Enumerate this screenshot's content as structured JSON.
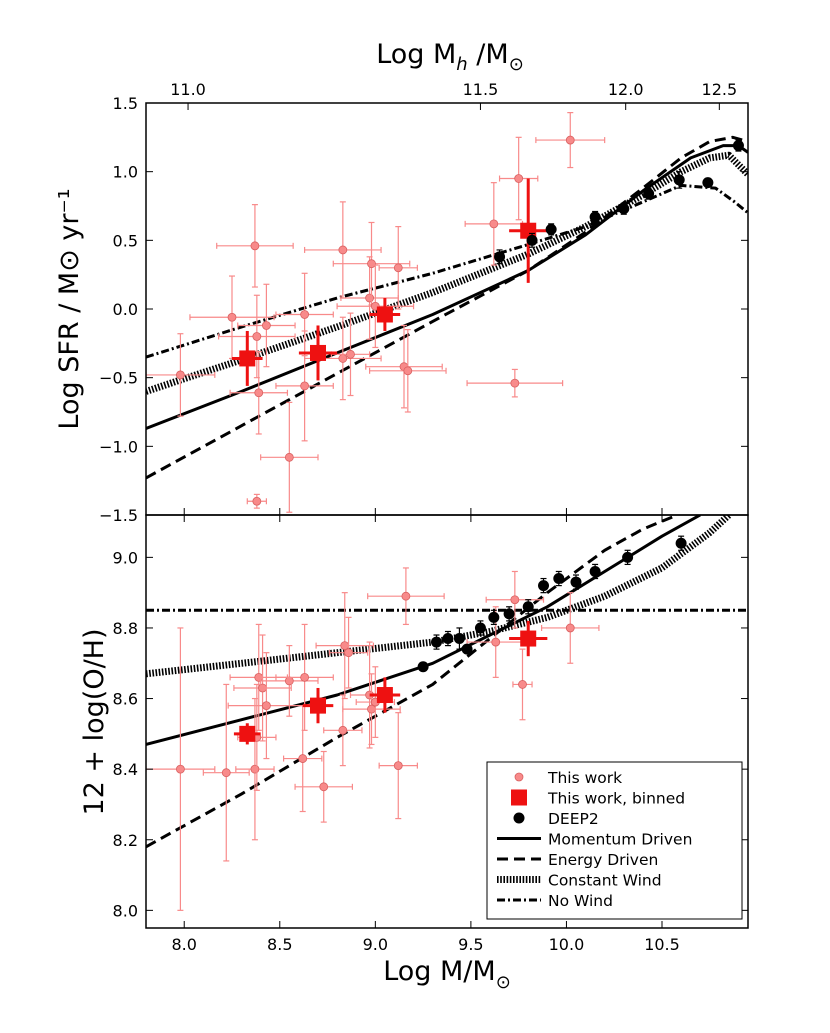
{
  "chart_data": [
    {
      "type": "scatter",
      "panel": "top",
      "ylabel": "Log SFR / M⊙ yr⁻¹",
      "xlim": [
        7.8,
        10.95
      ],
      "ylim": [
        -1.5,
        1.5
      ],
      "yticks": [
        -1.5,
        -1.0,
        -0.5,
        0.0,
        0.5,
        1.0,
        1.5
      ],
      "ytick_labels": [
        "−1.5",
        "−1.0",
        "−0.5",
        "0.0",
        "0.5",
        "1.0",
        "1.5"
      ],
      "secondary_x": {
        "label_main": "Log M",
        "label_sub": "h",
        "label_tail": "/M",
        "label_sun": "⊙",
        "ticks": [
          {
            "label": "11.0",
            "at_stellar_mass": 8.02
          },
          {
            "label": "11.5",
            "at_stellar_mass": 9.55
          },
          {
            "label": "12.0",
            "at_stellar_mass": 10.31
          },
          {
            "label": "12.5",
            "at_stellar_mass": 10.8
          }
        ]
      },
      "series": [
        {
          "name": "This work",
          "kind": "points",
          "color": "#f88a8a",
          "points": [
            {
              "x": 7.98,
              "y": -0.48,
              "xerr": 0.18,
              "yerr": 0.3
            },
            {
              "x": 8.25,
              "y": -0.06,
              "xerr": 0.22,
              "yerr": 0.3
            },
            {
              "x": 8.37,
              "y": 0.46,
              "xerr": 0.2,
              "yerr": 0.3
            },
            {
              "x": 8.38,
              "y": -0.2,
              "xerr": 0.2,
              "yerr": 0.3
            },
            {
              "x": 8.38,
              "y": -1.4,
              "xerr": 0.05,
              "yerr": 0.05
            },
            {
              "x": 8.39,
              "y": -0.61,
              "xerr": 0.15,
              "yerr": 0.3
            },
            {
              "x": 8.43,
              "y": -0.12,
              "xerr": 0.15,
              "yerr": 0.3
            },
            {
              "x": 8.55,
              "y": -1.08,
              "xerr": 0.15,
              "yerr": 0.4
            },
            {
              "x": 8.63,
              "y": -0.04,
              "xerr": 0.15,
              "yerr": 0.3
            },
            {
              "x": 8.63,
              "y": -0.56,
              "xerr": 0.15,
              "yerr": 0.4
            },
            {
              "x": 8.83,
              "y": 0.43,
              "xerr": 0.2,
              "yerr": 0.35
            },
            {
              "x": 8.83,
              "y": -0.36,
              "xerr": 0.2,
              "yerr": 0.3
            },
            {
              "x": 8.87,
              "y": -0.33,
              "xerr": 0.1,
              "yerr": 0.3
            },
            {
              "x": 8.97,
              "y": 0.08,
              "xerr": 0.15,
              "yerr": 0.3
            },
            {
              "x": 8.98,
              "y": 0.33,
              "xerr": 0.2,
              "yerr": 0.3
            },
            {
              "x": 9.0,
              "y": 0.02,
              "xerr": 0.2,
              "yerr": 0.3
            },
            {
              "x": 9.12,
              "y": 0.3,
              "xerr": 0.1,
              "yerr": 0.3
            },
            {
              "x": 9.15,
              "y": -0.42,
              "xerr": 0.2,
              "yerr": 0.3
            },
            {
              "x": 9.17,
              "y": -0.45,
              "xerr": 0.2,
              "yerr": 0.3
            },
            {
              "x": 9.62,
              "y": 0.62,
              "xerr": 0.15,
              "yerr": 0.3
            },
            {
              "x": 9.75,
              "y": 0.95,
              "xerr": 0.1,
              "yerr": 0.3
            },
            {
              "x": 9.73,
              "y": -0.54,
              "xerr": 0.25,
              "yerr": 0.1
            },
            {
              "x": 10.02,
              "y": 1.23,
              "xerr": 0.18,
              "yerr": 0.2
            }
          ]
        },
        {
          "name": "This work, binned",
          "kind": "squares",
          "color": "#ee1111",
          "points": [
            {
              "x": 8.33,
              "y": -0.36,
              "xerr": 0.08,
              "yerr": 0.2
            },
            {
              "x": 8.7,
              "y": -0.32,
              "xerr": 0.1,
              "yerr": 0.2
            },
            {
              "x": 9.05,
              "y": -0.04,
              "xerr": 0.08,
              "yerr": 0.12
            },
            {
              "x": 9.8,
              "y": 0.57,
              "xerr": 0.1,
              "yerr": 0.38
            }
          ]
        },
        {
          "name": "DEEP2",
          "kind": "dots",
          "color": "#000000",
          "points": [
            {
              "x": 9.65,
              "y": 0.38,
              "yerr": 0.05
            },
            {
              "x": 9.82,
              "y": 0.5,
              "yerr": 0.05
            },
            {
              "x": 9.92,
              "y": 0.58,
              "yerr": 0.04
            },
            {
              "x": 10.15,
              "y": 0.67,
              "yerr": 0.04
            },
            {
              "x": 10.3,
              "y": 0.73,
              "yerr": 0.04
            },
            {
              "x": 10.43,
              "y": 0.84,
              "yerr": 0.04
            },
            {
              "x": 10.59,
              "y": 0.94,
              "yerr": 0.06
            },
            {
              "x": 10.74,
              "y": 0.92,
              "yerr": 0.03
            },
            {
              "x": 10.9,
              "y": 1.19,
              "yerr": 0.04
            }
          ]
        },
        {
          "name": "Momentum Driven",
          "kind": "line",
          "style": "solid",
          "x": [
            7.8,
            8.3,
            8.8,
            9.3,
            9.8,
            10.1,
            10.4,
            10.65,
            10.82,
            10.9,
            10.95
          ],
          "y": [
            -0.87,
            -0.6,
            -0.32,
            -0.04,
            0.28,
            0.54,
            0.86,
            1.1,
            1.19,
            1.19,
            1.14
          ]
        },
        {
          "name": "Energy Driven",
          "kind": "line",
          "style": "dashed",
          "x": [
            7.8,
            8.3,
            8.8,
            9.3,
            9.8,
            10.1,
            10.4,
            10.6,
            10.75,
            10.87,
            10.95
          ],
          "y": [
            -1.23,
            -0.85,
            -0.47,
            -0.09,
            0.28,
            0.56,
            0.88,
            1.1,
            1.22,
            1.25,
            1.22
          ]
        },
        {
          "name": "Constant Wind",
          "kind": "line",
          "style": "dotted",
          "x": [
            7.8,
            8.3,
            8.8,
            9.3,
            9.8,
            10.1,
            10.4,
            10.6,
            10.75,
            10.85,
            10.95
          ],
          "y": [
            -0.6,
            -0.37,
            -0.13,
            0.12,
            0.4,
            0.6,
            0.83,
            1.0,
            1.1,
            1.12,
            0.98
          ]
        },
        {
          "name": "No Wind",
          "kind": "line",
          "style": "dashdot",
          "x": [
            7.8,
            8.3,
            8.8,
            9.3,
            9.8,
            10.1,
            10.4,
            10.6,
            10.78,
            10.88,
            10.95
          ],
          "y": [
            -0.35,
            -0.13,
            0.08,
            0.26,
            0.47,
            0.6,
            0.78,
            0.9,
            0.88,
            0.78,
            0.7
          ]
        }
      ]
    },
    {
      "type": "scatter",
      "panel": "bottom",
      "xlabel_main": "Log M/M",
      "xlabel_sun": "⊙",
      "ylabel": "12 + log(O/H)",
      "xlim": [
        7.8,
        10.95
      ],
      "ylim": [
        7.95,
        9.12
      ],
      "xticks": [
        8.0,
        8.5,
        9.0,
        9.5,
        10.0,
        10.5
      ],
      "xtick_labels": [
        "8.0",
        "8.5",
        "9.0",
        "9.5",
        "10.0",
        "10.5"
      ],
      "yticks": [
        8.0,
        8.2,
        8.4,
        8.6,
        8.8,
        9.0
      ],
      "ytick_labels": [
        "8.0",
        "8.2",
        "8.4",
        "8.6",
        "8.8",
        "9.0"
      ],
      "series": [
        {
          "name": "This work",
          "kind": "points",
          "color": "#f88a8a",
          "points": [
            {
              "x": 7.98,
              "y": 8.4,
              "xerr": 0.18,
              "yerr": 0.4
            },
            {
              "x": 8.22,
              "y": 8.39,
              "xerr": 0.12,
              "yerr": 0.25
            },
            {
              "x": 8.37,
              "y": 8.4,
              "xerr": 0.1,
              "yerr": 0.2
            },
            {
              "x": 8.38,
              "y": 8.49,
              "xerr": 0.1,
              "yerr": 0.15
            },
            {
              "x": 8.39,
              "y": 8.66,
              "xerr": 0.15,
              "yerr": 0.15
            },
            {
              "x": 8.41,
              "y": 8.63,
              "xerr": 0.15,
              "yerr": 0.15
            },
            {
              "x": 8.43,
              "y": 8.58,
              "xerr": 0.2,
              "yerr": 0.15
            },
            {
              "x": 8.55,
              "y": 8.65,
              "xerr": 0.15,
              "yerr": 0.1
            },
            {
              "x": 8.62,
              "y": 8.43,
              "xerr": 0.1,
              "yerr": 0.15
            },
            {
              "x": 8.63,
              "y": 8.66,
              "xerr": 0.15,
              "yerr": 0.15
            },
            {
              "x": 8.73,
              "y": 8.35,
              "xerr": 0.15,
              "yerr": 0.1
            },
            {
              "x": 8.83,
              "y": 8.51,
              "xerr": 0.1,
              "yerr": 0.1
            },
            {
              "x": 8.84,
              "y": 8.75,
              "xerr": 0.15,
              "yerr": 0.15
            },
            {
              "x": 8.86,
              "y": 8.73,
              "xerr": 0.1,
              "yerr": 0.1
            },
            {
              "x": 8.97,
              "y": 8.61,
              "xerr": 0.1,
              "yerr": 0.15
            },
            {
              "x": 8.98,
              "y": 8.57,
              "xerr": 0.15,
              "yerr": 0.1
            },
            {
              "x": 9.0,
              "y": 8.59,
              "xerr": 0.1,
              "yerr": 0.1
            },
            {
              "x": 9.12,
              "y": 8.41,
              "xerr": 0.1,
              "yerr": 0.15
            },
            {
              "x": 9.16,
              "y": 8.89,
              "xerr": 0.2,
              "yerr": 0.08
            },
            {
              "x": 9.63,
              "y": 8.76,
              "xerr": 0.15,
              "yerr": 0.1
            },
            {
              "x": 9.73,
              "y": 8.88,
              "xerr": 0.15,
              "yerr": 0.08
            },
            {
              "x": 9.77,
              "y": 8.64,
              "xerr": 0.05,
              "yerr": 0.1
            },
            {
              "x": 10.02,
              "y": 8.8,
              "xerr": 0.15,
              "yerr": 0.1
            }
          ]
        },
        {
          "name": "This work, binned",
          "kind": "squares",
          "color": "#ee1111",
          "points": [
            {
              "x": 8.33,
              "y": 8.5,
              "xerr": 0.07,
              "yerr": 0.03
            },
            {
              "x": 8.7,
              "y": 8.58,
              "xerr": 0.08,
              "yerr": 0.05
            },
            {
              "x": 9.05,
              "y": 8.61,
              "xerr": 0.08,
              "yerr": 0.05
            },
            {
              "x": 9.8,
              "y": 8.77,
              "xerr": 0.1,
              "yerr": 0.05
            }
          ]
        },
        {
          "name": "DEEP2",
          "kind": "dots",
          "color": "#000000",
          "points": [
            {
              "x": 9.25,
              "y": 8.69,
              "yerr": 0.01
            },
            {
              "x": 9.32,
              "y": 8.76,
              "yerr": 0.02
            },
            {
              "x": 9.38,
              "y": 8.77,
              "yerr": 0.02
            },
            {
              "x": 9.44,
              "y": 8.77,
              "yerr": 0.03
            },
            {
              "x": 9.48,
              "y": 8.74,
              "yerr": 0.01
            },
            {
              "x": 9.55,
              "y": 8.8,
              "yerr": 0.02
            },
            {
              "x": 9.62,
              "y": 8.83,
              "yerr": 0.02
            },
            {
              "x": 9.7,
              "y": 8.84,
              "yerr": 0.02
            },
            {
              "x": 9.8,
              "y": 8.86,
              "yerr": 0.02
            },
            {
              "x": 9.88,
              "y": 8.92,
              "yerr": 0.02
            },
            {
              "x": 9.96,
              "y": 8.94,
              "yerr": 0.02
            },
            {
              "x": 10.05,
              "y": 8.93,
              "yerr": 0.02
            },
            {
              "x": 10.15,
              "y": 8.96,
              "yerr": 0.02
            },
            {
              "x": 10.32,
              "y": 9.0,
              "yerr": 0.02
            },
            {
              "x": 10.6,
              "y": 9.04,
              "yerr": 0.02
            }
          ]
        },
        {
          "name": "Momentum Driven",
          "kind": "line",
          "style": "solid",
          "x": [
            7.8,
            8.3,
            8.8,
            9.3,
            9.6,
            9.9,
            10.2,
            10.5,
            10.7
          ],
          "y": [
            8.47,
            8.54,
            8.61,
            8.7,
            8.78,
            8.86,
            8.96,
            9.06,
            9.12
          ]
        },
        {
          "name": "Energy Driven",
          "kind": "line",
          "style": "dashed",
          "x": [
            7.8,
            8.3,
            8.8,
            9.3,
            9.6,
            9.9,
            10.2,
            10.4,
            10.58
          ],
          "y": [
            8.18,
            8.33,
            8.49,
            8.64,
            8.77,
            8.9,
            9.02,
            9.08,
            9.12
          ]
        },
        {
          "name": "Constant Wind",
          "kind": "line",
          "style": "dotted",
          "x": [
            7.8,
            8.3,
            8.8,
            9.3,
            9.6,
            9.9,
            10.2,
            10.5,
            10.75,
            10.85
          ],
          "y": [
            8.67,
            8.7,
            8.73,
            8.76,
            8.79,
            8.83,
            8.89,
            8.97,
            9.07,
            9.12
          ]
        },
        {
          "name": "No Wind",
          "kind": "line",
          "style": "dashdot",
          "x": [
            7.8,
            10.95
          ],
          "y": [
            8.85,
            8.85
          ]
        }
      ]
    }
  ],
  "legend": {
    "items": [
      {
        "label": "This work",
        "marker": "small-circle"
      },
      {
        "label": "This work, binned",
        "marker": "square"
      },
      {
        "label": "DEEP2",
        "marker": "dot"
      },
      {
        "label": "Momentum Driven",
        "marker": "solid-line"
      },
      {
        "label": "Energy Driven",
        "marker": "dashed-line"
      },
      {
        "label": "Constant Wind",
        "marker": "dotted-line"
      },
      {
        "label": "No Wind",
        "marker": "dashdot-line"
      }
    ]
  }
}
